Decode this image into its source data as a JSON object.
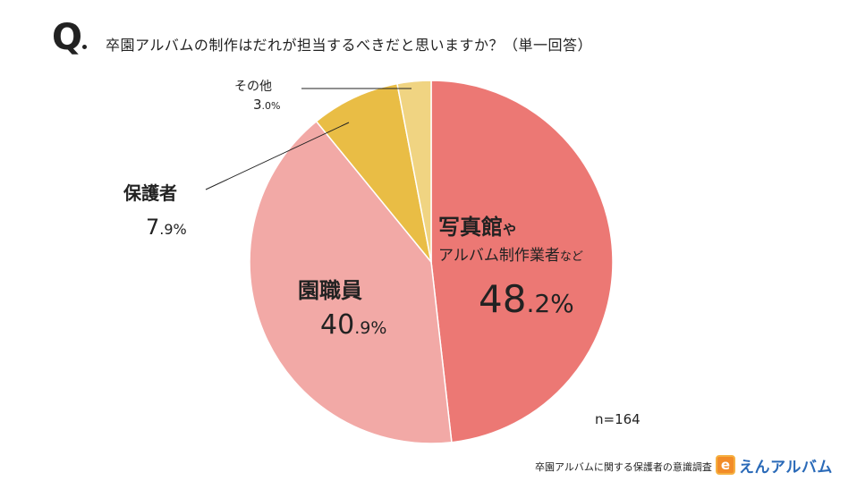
{
  "question": {
    "mark": "Q",
    "text": "卒園アルバムの制作はだれが担当するべきだと思いますか？（単一回答）"
  },
  "chart_data": {
    "type": "pie",
    "slices": [
      {
        "name": "写真館やアルバム制作業者など",
        "label_main": "写真館",
        "label_suffix": "や",
        "label_line2_main": "アルバム制作業者",
        "label_line2_suffix": "など",
        "value": 48.2,
        "value_int": "48",
        "value_dec": ".2%",
        "color": "#ec7874"
      },
      {
        "name": "園職員",
        "label_main": "園職員",
        "value": 40.9,
        "value_int": "40",
        "value_dec": ".9%",
        "color": "#f2a9a6"
      },
      {
        "name": "保護者",
        "label_main": "保護者",
        "value": 7.9,
        "value_int": "7",
        "value_dec": ".9%",
        "color": "#e9bd45"
      },
      {
        "name": "その他",
        "label_main": "その他",
        "value": 3.0,
        "value_int": "3",
        "value_dec": ".0%",
        "color": "#f0d482"
      }
    ],
    "n_label": "n=164"
  },
  "footer": {
    "source": "卒園アルバムに関する保護者の意識調査",
    "logo_icon": "e",
    "logo_text": "えんアルバム"
  }
}
